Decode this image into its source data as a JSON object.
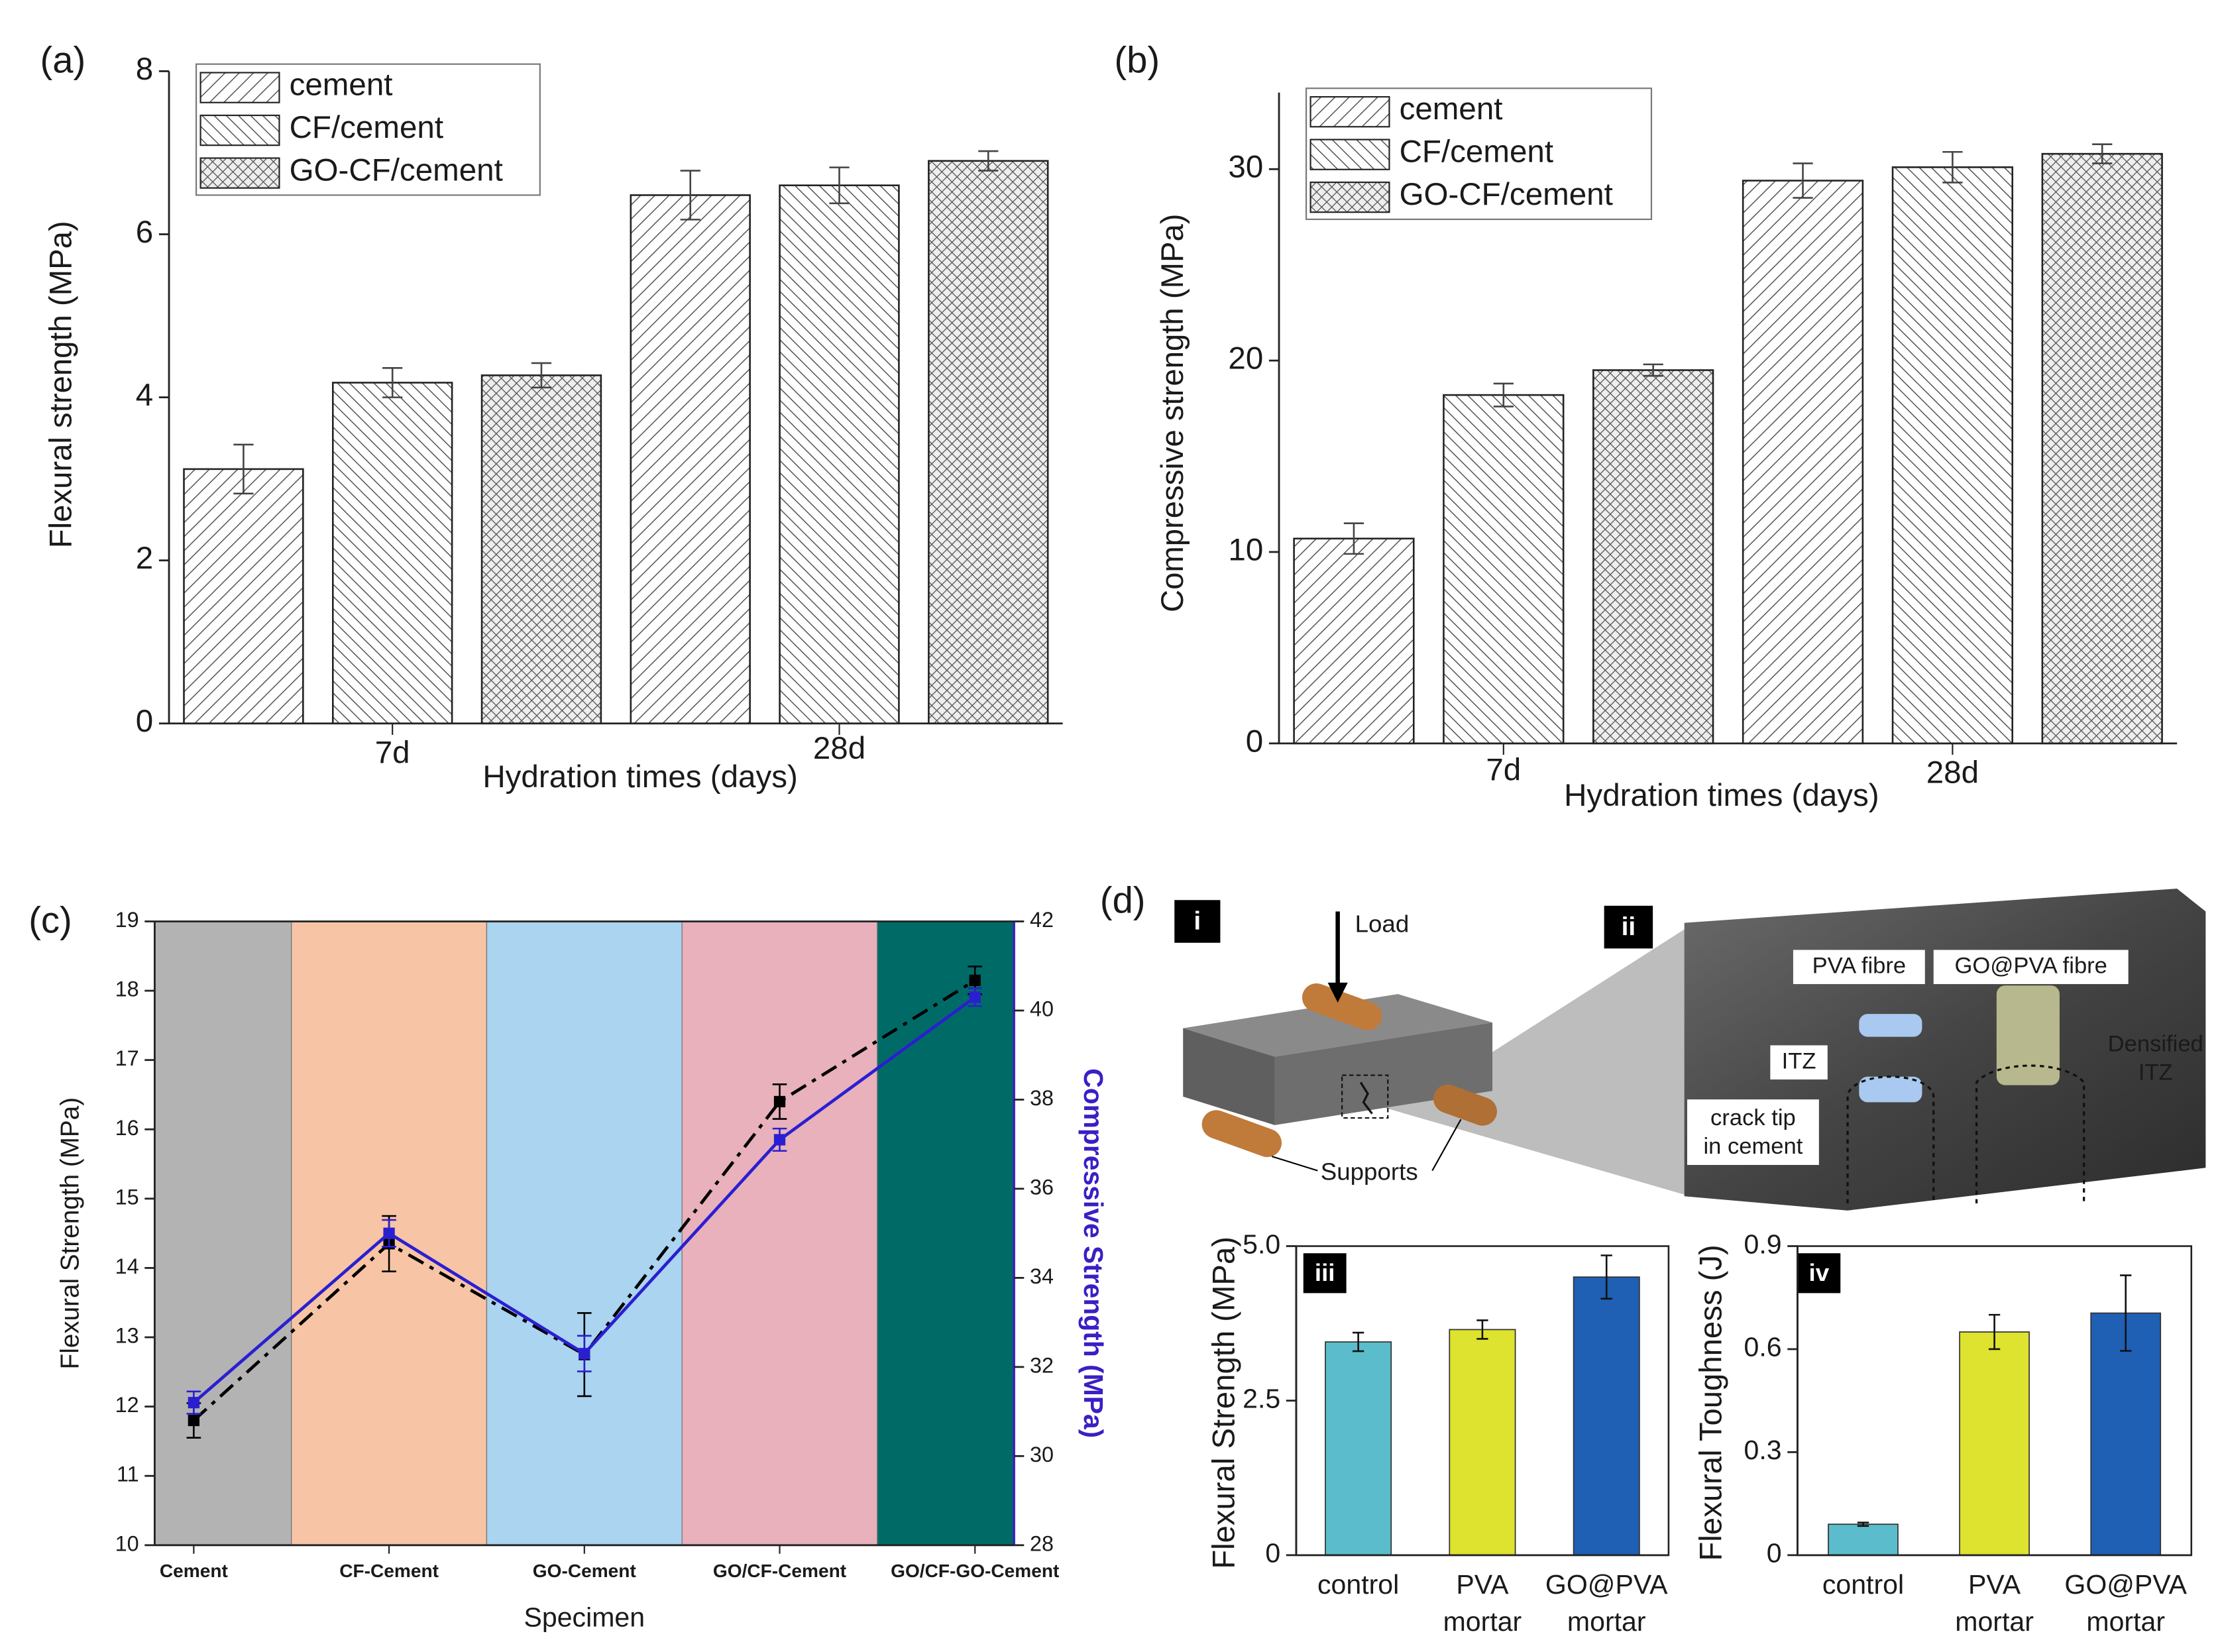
{
  "chart_data": [
    {
      "type": "bar",
      "panel_label": "(a)",
      "categories": [
        "7d",
        "28d"
      ],
      "xlabel": "Hydration times (days)",
      "ylabel": "Flexural strength (MPa)",
      "series": [
        {
          "name": "cement",
          "hatch": "fwd",
          "values": [
            3.12,
            6.48
          ],
          "errors": [
            0.3,
            0.3
          ]
        },
        {
          "name": "CF/cement",
          "hatch": "back",
          "values": [
            4.18,
            6.6
          ],
          "errors": [
            0.18,
            0.22
          ]
        },
        {
          "name": "GO-CF/cement",
          "hatch": "cross",
          "values": [
            4.27,
            6.9
          ],
          "errors": [
            0.15,
            0.12
          ]
        }
      ],
      "ylim": [
        0,
        8
      ],
      "yticks": [
        0,
        2,
        4,
        6,
        8
      ]
    },
    {
      "type": "bar",
      "panel_label": "(b)",
      "categories": [
        "7d",
        "28d"
      ],
      "xlabel": "Hydration times (days)",
      "ylabel": "Compressive strength (MPa)",
      "series": [
        {
          "name": "cement",
          "hatch": "fwd",
          "values": [
            10.7,
            29.4
          ],
          "errors": [
            0.8,
            0.9
          ]
        },
        {
          "name": "CF/cement",
          "hatch": "back",
          "values": [
            18.2,
            30.1
          ],
          "errors": [
            0.6,
            0.8
          ]
        },
        {
          "name": "GO-CF/cement",
          "hatch": "cross",
          "values": [
            19.5,
            30.8
          ],
          "errors": [
            0.3,
            0.5
          ]
        }
      ],
      "ylim": [
        0,
        34
      ],
      "yticks": [
        0,
        10,
        20,
        30
      ]
    },
    {
      "type": "line",
      "panel_label": "(c)",
      "categories": [
        "Cement",
        "CF-Cement",
        "GO-Cement",
        "GO/CF-Cement",
        "GO/CF-GO-Cement"
      ],
      "band_colors": [
        "#b3b3b3",
        "#f7c4a5",
        "#aad4f0",
        "#e8b1bc",
        "#006b66"
      ],
      "xlabel": "Specimen",
      "ylabel": "Flexural Strength (MPa)",
      "y2label": "Compressive Strength (MPa)",
      "y2label_color": "#3a1fc4",
      "series": [
        {
          "name": "Flexural Strength",
          "color": "#000000",
          "line_style": "dash-dot",
          "values": [
            11.8,
            14.35,
            12.75,
            16.4,
            18.15
          ],
          "errors": [
            0.25,
            0.4,
            0.6,
            0.25,
            0.2
          ]
        },
        {
          "name": "Compressive Strength",
          "color": "#2a1fd0",
          "line_style": "solid",
          "axis": "y2",
          "values": [
            31.2,
            35.0,
            32.3,
            37.1,
            40.3
          ],
          "errors": [
            0.25,
            0.3,
            0.4,
            0.25,
            0.2
          ]
        }
      ],
      "ylim": [
        10,
        19
      ],
      "yticks": [
        10,
        11,
        12,
        13,
        14,
        15,
        16,
        17,
        18,
        19
      ],
      "y2lim": [
        28,
        42
      ],
      "y2ticks": [
        28,
        30,
        32,
        34,
        36,
        38,
        40,
        42
      ]
    },
    {
      "type": "bar",
      "tag": "iii",
      "categories": [
        "control",
        "PVA mortar",
        "GO@PVA mortar"
      ],
      "ylabel": "Flexural Strength (MPa)",
      "values": [
        3.45,
        3.65,
        4.5
      ],
      "errors": [
        0.15,
        0.15,
        0.35
      ],
      "colors": [
        "#5bbdcb",
        "#dde32f",
        "#1f5fb4"
      ],
      "ylim": [
        0,
        5
      ],
      "yticks": [
        0,
        2.5,
        {
          "value": 5,
          "label": "5.0"
        }
      ]
    },
    {
      "type": "bar",
      "tag": "iv",
      "categories": [
        "control",
        "PVA mortar",
        "GO@PVA mortar"
      ],
      "ylabel": "Flexural Toughness (J)",
      "values": [
        0.09,
        0.65,
        0.705
      ],
      "errors": [
        0.005,
        0.05,
        0.11
      ],
      "colors": [
        "#5bbdcb",
        "#dde32f",
        "#1f5fb4"
      ],
      "ylim": [
        0,
        0.9
      ],
      "yticks": [
        0,
        0.3,
        0.6,
        0.9
      ]
    }
  ],
  "diagram": {
    "panel_label": "(d)",
    "tag_i": "i",
    "tag_ii": "ii",
    "load": "Load",
    "supports": "Supports",
    "pva_fibre": "PVA fibre",
    "go_pva_fibre": "GO@PVA fibre",
    "itz": "ITZ",
    "densified_itz": "Densified ITZ",
    "crack_tip": "crack tip in cement"
  }
}
